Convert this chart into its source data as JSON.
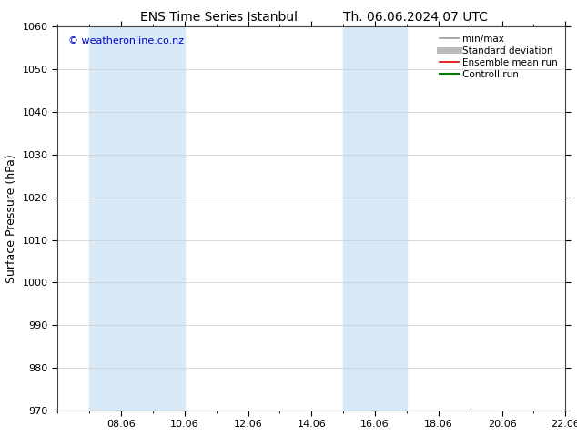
{
  "title1": "ENS Time Series Istanbul",
  "title2": "Th. 06.06.2024 07 UTC",
  "ylabel": "Surface Pressure (hPa)",
  "ylim": [
    970,
    1060
  ],
  "yticks": [
    970,
    980,
    990,
    1000,
    1010,
    1020,
    1030,
    1040,
    1050,
    1060
  ],
  "xlim": [
    6.0,
    22.0
  ],
  "xtick_positions": [
    8,
    10,
    12,
    14,
    16,
    18,
    20,
    22
  ],
  "xtick_labels": [
    "08.06",
    "10.06",
    "12.06",
    "14.06",
    "16.06",
    "18.06",
    "20.06",
    "22.06"
  ],
  "shade_bands": [
    {
      "x_start": 7.0,
      "x_end": 10.0,
      "color": "#d8eaf7"
    },
    {
      "x_start": 15.0,
      "x_end": 17.0,
      "color": "#d8eaf7"
    }
  ],
  "copyright_text": "© weatheronline.co.nz",
  "copyright_color": "#0000cc",
  "legend_items": [
    {
      "label": "min/max",
      "color": "#999999",
      "lw": 1.2,
      "style": "line"
    },
    {
      "label": "Standard deviation",
      "color": "#bbbbbb",
      "lw": 5,
      "style": "line"
    },
    {
      "label": "Ensemble mean run",
      "color": "#dd0000",
      "lw": 1.2,
      "style": "line"
    },
    {
      "label": "Controll run",
      "color": "#007700",
      "lw": 1.5,
      "style": "line"
    }
  ],
  "bg_color": "#ffffff",
  "grid_color": "#cccccc",
  "title_fontsize": 10,
  "axis_label_fontsize": 9,
  "tick_fontsize": 8,
  "legend_fontsize": 7.5
}
